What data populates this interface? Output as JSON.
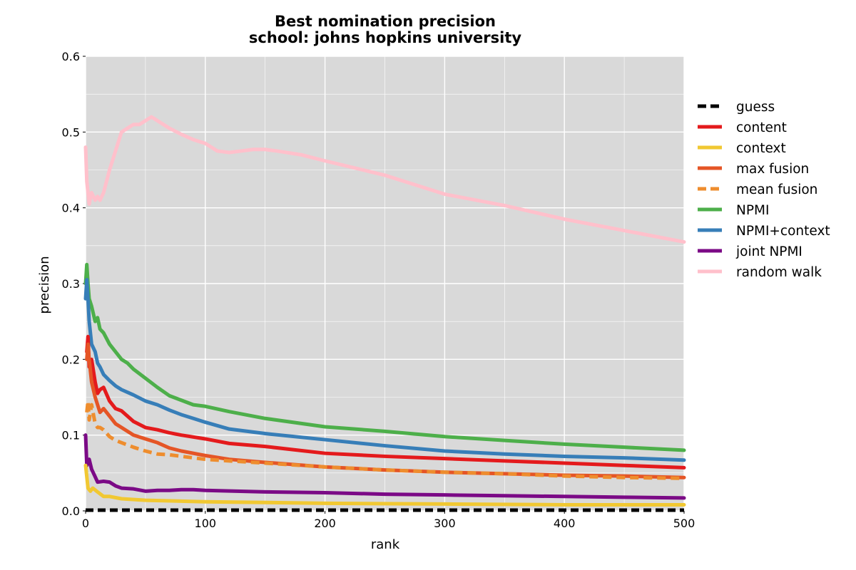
{
  "chart_data": {
    "type": "line",
    "title": "Best nomination precision",
    "subtitle": "school: johns hopkins university",
    "xlabel": "rank",
    "ylabel": "precision",
    "xlim": [
      0,
      500
    ],
    "ylim": [
      0,
      0.6
    ],
    "xticks": [
      "0",
      "100",
      "200",
      "300",
      "400",
      "500"
    ],
    "yticks": [
      "0.0",
      "0.1",
      "0.2",
      "0.3",
      "0.4",
      "0.5",
      "0.6"
    ],
    "grid": true,
    "background": "#d9d9d9",
    "legend_position": "right, outside plot",
    "series": [
      {
        "name": "guess",
        "color": "#000000",
        "dashed": true,
        "x": [
          0,
          100,
          200,
          300,
          400,
          500
        ],
        "y": [
          0.001,
          0.001,
          0.001,
          0.001,
          0.001,
          0.001
        ]
      },
      {
        "name": "content",
        "color": "#e41a1c",
        "dashed": false,
        "x": [
          1,
          2,
          3,
          5,
          8,
          10,
          12,
          15,
          20,
          25,
          30,
          40,
          50,
          60,
          70,
          80,
          100,
          120,
          150,
          200,
          250,
          300,
          350,
          400,
          450,
          500
        ],
        "y": [
          0.21,
          0.23,
          0.19,
          0.2,
          0.17,
          0.155,
          0.16,
          0.163,
          0.145,
          0.135,
          0.132,
          0.118,
          0.11,
          0.107,
          0.103,
          0.1,
          0.095,
          0.089,
          0.085,
          0.076,
          0.072,
          0.069,
          0.066,
          0.063,
          0.06,
          0.057
        ]
      },
      {
        "name": "context",
        "color": "#f1c832",
        "dashed": false,
        "x": [
          0,
          1,
          2,
          4,
          6,
          10,
          15,
          20,
          30,
          50,
          100,
          150,
          200,
          300,
          400,
          500
        ],
        "y": [
          0.06,
          0.045,
          0.03,
          0.026,
          0.03,
          0.025,
          0.019,
          0.019,
          0.016,
          0.014,
          0.012,
          0.011,
          0.01,
          0.009,
          0.008,
          0.008
        ]
      },
      {
        "name": "max fusion",
        "color": "#e55526",
        "dashed": false,
        "x": [
          1,
          2,
          3,
          5,
          8,
          10,
          12,
          15,
          20,
          25,
          30,
          40,
          50,
          60,
          70,
          80,
          100,
          120,
          150,
          200,
          250,
          300,
          350,
          400,
          450,
          500
        ],
        "y": [
          0.2,
          0.22,
          0.2,
          0.17,
          0.15,
          0.14,
          0.13,
          0.135,
          0.125,
          0.115,
          0.11,
          0.1,
          0.095,
          0.09,
          0.083,
          0.079,
          0.073,
          0.068,
          0.064,
          0.058,
          0.054,
          0.051,
          0.049,
          0.047,
          0.046,
          0.044
        ]
      },
      {
        "name": "mean fusion",
        "color": "#ee8d2e",
        "dashed": true,
        "x": [
          1,
          2,
          3,
          5,
          8,
          10,
          12,
          15,
          20,
          25,
          30,
          40,
          50,
          60,
          70,
          80,
          100,
          120,
          150,
          200,
          250,
          300,
          350,
          400,
          450,
          500
        ],
        "y": [
          0.13,
          0.145,
          0.12,
          0.14,
          0.115,
          0.11,
          0.11,
          0.107,
          0.098,
          0.093,
          0.09,
          0.084,
          0.079,
          0.075,
          0.074,
          0.072,
          0.068,
          0.066,
          0.063,
          0.058,
          0.054,
          0.051,
          0.049,
          0.046,
          0.044,
          0.043
        ]
      },
      {
        "name": "NPMI",
        "color": "#4daf4a",
        "dashed": false,
        "x": [
          0,
          1,
          2,
          3,
          5,
          8,
          10,
          12,
          15,
          20,
          25,
          30,
          35,
          40,
          50,
          60,
          70,
          80,
          90,
          100,
          120,
          150,
          200,
          250,
          300,
          350,
          400,
          450,
          500
        ],
        "y": [
          0.3,
          0.325,
          0.3,
          0.28,
          0.27,
          0.25,
          0.255,
          0.24,
          0.235,
          0.22,
          0.21,
          0.2,
          0.195,
          0.187,
          0.175,
          0.163,
          0.152,
          0.146,
          0.14,
          0.138,
          0.131,
          0.122,
          0.111,
          0.105,
          0.098,
          0.093,
          0.088,
          0.084,
          0.08
        ]
      },
      {
        "name": "NPMI+context",
        "color": "#377eb8",
        "dashed": false,
        "x": [
          0,
          1,
          2,
          3,
          5,
          8,
          10,
          12,
          15,
          20,
          25,
          30,
          40,
          50,
          60,
          70,
          80,
          90,
          100,
          120,
          150,
          200,
          250,
          300,
          350,
          400,
          450,
          500
        ],
        "y": [
          0.28,
          0.305,
          0.28,
          0.25,
          0.22,
          0.21,
          0.195,
          0.19,
          0.18,
          0.172,
          0.165,
          0.16,
          0.153,
          0.145,
          0.14,
          0.133,
          0.127,
          0.122,
          0.117,
          0.108,
          0.102,
          0.094,
          0.086,
          0.079,
          0.075,
          0.072,
          0.07,
          0.067
        ]
      },
      {
        "name": "joint NPMI",
        "color": "#7b0a86",
        "dashed": false,
        "x": [
          0,
          1,
          2,
          3,
          5,
          8,
          10,
          15,
          20,
          25,
          30,
          40,
          50,
          60,
          70,
          80,
          90,
          100,
          150,
          200,
          250,
          300,
          350,
          400,
          450,
          500
        ],
        "y": [
          0.1,
          0.06,
          0.065,
          0.068,
          0.055,
          0.045,
          0.038,
          0.039,
          0.038,
          0.033,
          0.03,
          0.029,
          0.026,
          0.027,
          0.027,
          0.028,
          0.028,
          0.027,
          0.025,
          0.024,
          0.022,
          0.021,
          0.02,
          0.019,
          0.018,
          0.017
        ]
      },
      {
        "name": "random walk",
        "color": "#ffc0cb",
        "dashed": false,
        "x": [
          0,
          1,
          2,
          3,
          5,
          8,
          10,
          12,
          15,
          20,
          25,
          30,
          35,
          40,
          45,
          50,
          55,
          60,
          70,
          80,
          90,
          100,
          110,
          120,
          130,
          140,
          150,
          160,
          180,
          200,
          250,
          300,
          350,
          400,
          450,
          500
        ],
        "y": [
          0.48,
          0.435,
          0.42,
          0.405,
          0.42,
          0.41,
          0.415,
          0.41,
          0.42,
          0.45,
          0.475,
          0.5,
          0.505,
          0.51,
          0.51,
          0.515,
          0.52,
          0.515,
          0.505,
          0.497,
          0.49,
          0.485,
          0.475,
          0.473,
          0.475,
          0.477,
          0.477,
          0.475,
          0.47,
          0.462,
          0.443,
          0.418,
          0.403,
          0.385,
          0.37,
          0.355
        ]
      }
    ]
  }
}
